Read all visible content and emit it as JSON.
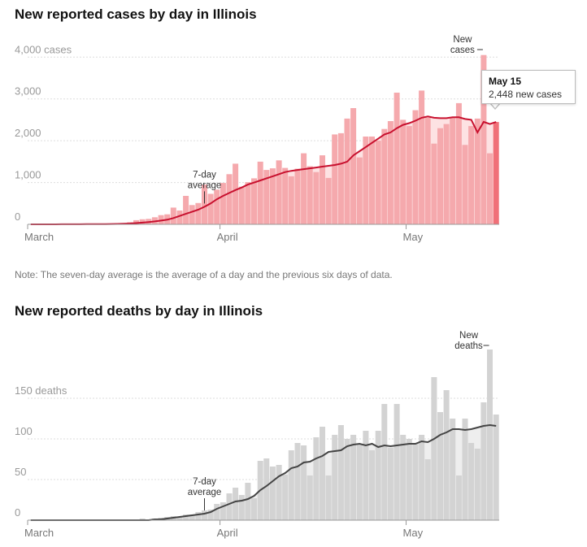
{
  "note": "Note: The seven-day average is the average of a day and the previous six days of data.",
  "colors": {
    "case_bar": "#f5a9ad",
    "case_bar_highlight": "#f07078",
    "case_line": "#c8102e",
    "case_area": "#fde2e3",
    "death_bar": "#d3d3d3",
    "death_line": "#444444",
    "death_area": "#eeeeee",
    "grid": "#dddddd"
  },
  "tooltip": {
    "date": "May 15",
    "value": "2,448 new cases"
  },
  "chart_data": [
    {
      "type": "bar",
      "title": "New reported cases by day in Illinois",
      "x_start": "2020-03-01",
      "x_end": "2020-05-15",
      "month_labels": [
        "March",
        "April",
        "May"
      ],
      "y_ticks": [
        0,
        1000,
        2000,
        3000,
        4000
      ],
      "y_tick_labels": [
        "0",
        "1,000",
        "2,000",
        "3,000",
        "4,000 cases"
      ],
      "ylim": [
        0,
        4200
      ],
      "annotations": {
        "average": "7-day average",
        "bars": "New cases"
      },
      "series": [
        {
          "name": "New cases",
          "values": [
            0,
            0,
            0,
            0,
            0,
            1,
            1,
            1,
            2,
            5,
            4,
            8,
            14,
            20,
            10,
            30,
            50,
            100,
            120,
            130,
            170,
            220,
            240,
            400,
            330,
            680,
            460,
            510,
            950,
            730,
            830,
            990,
            1200,
            1450,
            900,
            1010,
            1100,
            1500,
            1300,
            1340,
            1530,
            1350,
            1150,
            1330,
            1700,
            1390,
            1250,
            1650,
            1110,
            2150,
            2180,
            2530,
            2780,
            1600,
            2100,
            2100,
            2000,
            2280,
            2470,
            3150,
            2500,
            2350,
            2730,
            3200,
            2550,
            1930,
            2300,
            2400,
            2560,
            2900,
            1900,
            2350,
            2530,
            4050,
            1700,
            2448
          ]
        },
        {
          "name": "7-day average",
          "values": [
            0,
            0,
            0,
            0,
            0,
            1,
            1,
            1,
            2,
            3,
            3,
            4,
            6,
            8,
            10,
            14,
            20,
            30,
            40,
            55,
            70,
            90,
            110,
            150,
            200,
            250,
            300,
            350,
            420,
            500,
            600,
            680,
            750,
            820,
            880,
            950,
            1000,
            1050,
            1100,
            1150,
            1200,
            1250,
            1280,
            1300,
            1320,
            1340,
            1360,
            1380,
            1400,
            1420,
            1450,
            1500,
            1650,
            1750,
            1850,
            1950,
            2050,
            2150,
            2200,
            2300,
            2380,
            2420,
            2480,
            2550,
            2580,
            2550,
            2540,
            2540,
            2560,
            2560,
            2520,
            2500,
            2200,
            2450,
            2400,
            2448
          ]
        }
      ]
    },
    {
      "type": "bar",
      "title": "New reported deaths by day in Illinois",
      "x_start": "2020-03-01",
      "x_end": "2020-05-15",
      "month_labels": [
        "March",
        "April",
        "May"
      ],
      "y_ticks": [
        0,
        50,
        100,
        150
      ],
      "y_tick_labels": [
        "0",
        "50",
        "100",
        "150 deaths"
      ],
      "ylim": [
        0,
        200
      ],
      "annotations": {
        "average": "7-day average",
        "bars": "New deaths"
      },
      "series": [
        {
          "name": "New deaths",
          "values": [
            0,
            0,
            0,
            0,
            0,
            0,
            0,
            0,
            0,
            0,
            0,
            0,
            0,
            0,
            0,
            0,
            1,
            0,
            2,
            1,
            2,
            3,
            4,
            5,
            4,
            7,
            7,
            10,
            12,
            13,
            20,
            22,
            33,
            40,
            31,
            46,
            27,
            73,
            76,
            66,
            68,
            56,
            86,
            95,
            92,
            55,
            102,
            115,
            55,
            105,
            117,
            100,
            105,
            93,
            110,
            86,
            110,
            143,
            89,
            143,
            105,
            100,
            95,
            105,
            75,
            176,
            133,
            160,
            125,
            55,
            125,
            95,
            88,
            145,
            210,
            130
          ]
        },
        {
          "name": "7-day average",
          "values": [
            0,
            0,
            0,
            0,
            0,
            0,
            0,
            0,
            0,
            0,
            0,
            0,
            0,
            0,
            0,
            0,
            0,
            0,
            0,
            0,
            1,
            1,
            2,
            3,
            4,
            5,
            6,
            7,
            8,
            10,
            14,
            17,
            20,
            23,
            24,
            26,
            30,
            37,
            42,
            48,
            54,
            58,
            64,
            66,
            71,
            72,
            76,
            79,
            84,
            85,
            86,
            91,
            93,
            94,
            92,
            94,
            90,
            92,
            91,
            92,
            93,
            94,
            94,
            97,
            96,
            100,
            105,
            108,
            112,
            112,
            111,
            112,
            114,
            116,
            117,
            116
          ]
        }
      ]
    }
  ]
}
